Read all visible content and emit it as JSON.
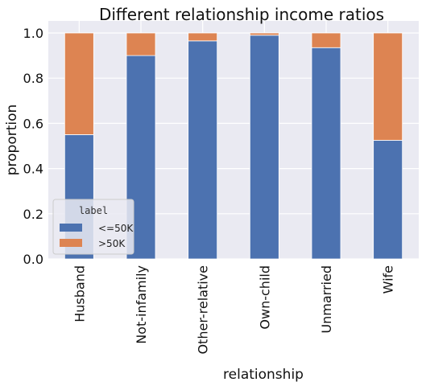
{
  "chart_data": {
    "type": "bar",
    "stacked": true,
    "title": "Different relationship income ratios",
    "xlabel": "relationship",
    "ylabel": "proportion",
    "categories": [
      "Husband",
      "Not-infamily",
      "Other-relative",
      "Own-child",
      "Unmarried",
      "Wife"
    ],
    "series": [
      {
        "name": "<=50K",
        "values": [
          0.55,
          0.9,
          0.965,
          0.99,
          0.935,
          0.525
        ]
      },
      {
        "name": ">50K",
        "values": [
          0.45,
          0.1,
          0.035,
          0.01,
          0.065,
          0.475
        ]
      }
    ],
    "ylim": [
      0,
      1.0
    ],
    "yticks": [
      0.0,
      0.2,
      0.4,
      0.6,
      0.8,
      1.0
    ],
    "ytick_labels": [
      "0.0",
      "0.2",
      "0.4",
      "0.6",
      "0.8",
      "1.0"
    ],
    "grid": true,
    "legend": {
      "title": "label",
      "position": "lower-left"
    },
    "colors": {
      "series": [
        "#4c72b0",
        "#dd8452"
      ],
      "background": "#eaeaf2",
      "grid": "#ffffff"
    }
  }
}
